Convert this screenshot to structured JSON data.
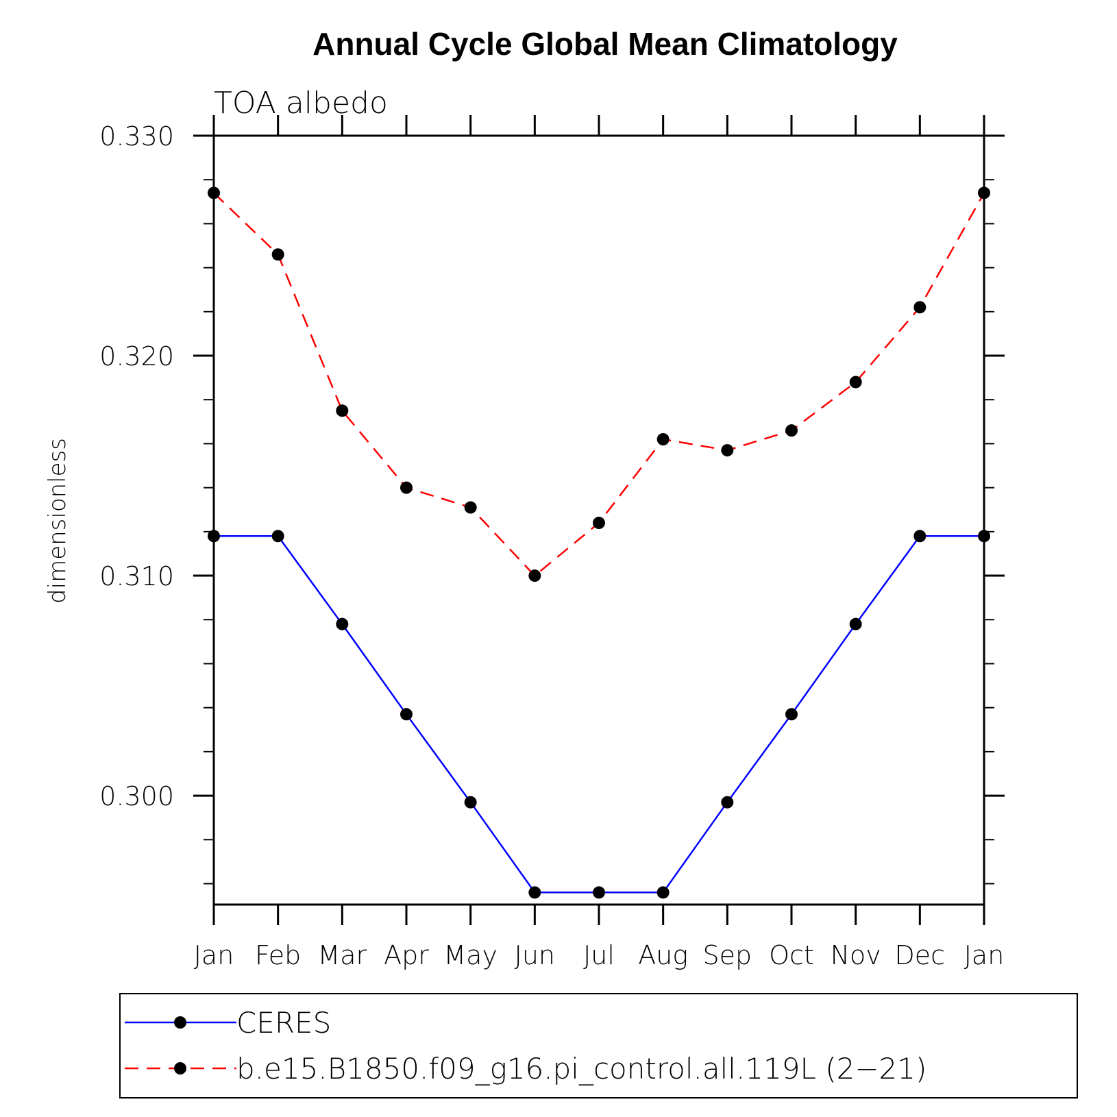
{
  "chart_data": {
    "type": "line",
    "title": "Annual Cycle Global Mean Climatology",
    "subtitle": "TOA albedo",
    "xlabel": "",
    "ylabel": "dimensionless",
    "categories": [
      "Jan",
      "Feb",
      "Mar",
      "Apr",
      "May",
      "Jun",
      "Jul",
      "Aug",
      "Sep",
      "Oct",
      "Nov",
      "Dec",
      "Jan"
    ],
    "yticks": [
      "0.300",
      "0.310",
      "0.320",
      "0.330"
    ],
    "ylim": [
      0.29505,
      0.33
    ],
    "grid": false,
    "legend_position": "bottom",
    "series": [
      {
        "name": "CERES",
        "color": "#0000ff",
        "dash": "solid",
        "values": [
          0.3118,
          0.3118,
          0.3078,
          0.3037,
          0.2997,
          0.2956,
          0.2956,
          0.2956,
          0.2997,
          0.3037,
          0.3078,
          0.3118,
          0.3118
        ]
      },
      {
        "name": "b.e15.B1850.f09_g16.pi_control.all.119L (2−21)",
        "color": "#ff0000",
        "dash": "dashed",
        "values": [
          0.3274,
          0.3246,
          0.3175,
          0.314,
          0.3131,
          0.31,
          0.3124,
          0.3162,
          0.3157,
          0.3166,
          0.3188,
          0.3222,
          0.3274
        ]
      }
    ]
  }
}
